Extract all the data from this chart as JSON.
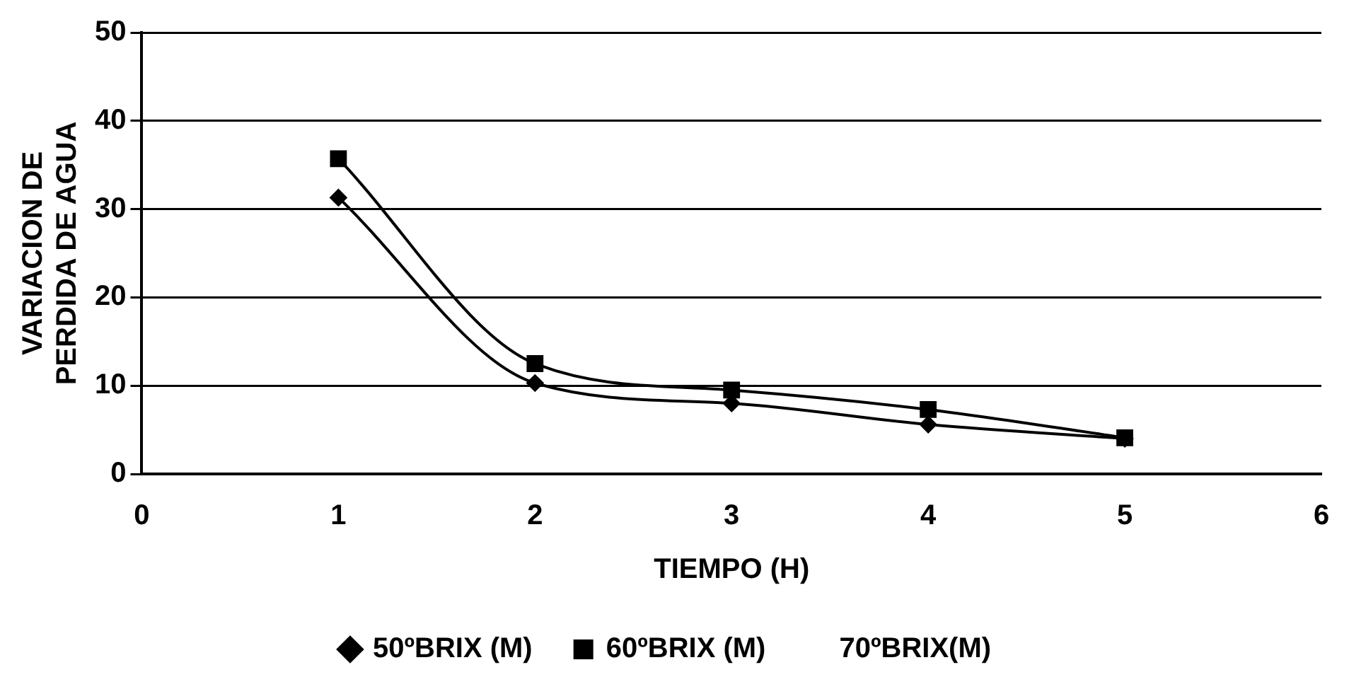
{
  "chart_data": {
    "type": "line",
    "xlabel": "TIEMPO (H)",
    "ylabel": "VARIACION DE\nPERDIDA DE AGUA",
    "x": [
      1,
      2,
      3,
      4,
      5
    ],
    "xlim": [
      0,
      6
    ],
    "xticks": [
      0,
      1,
      2,
      3,
      4,
      5,
      6
    ],
    "ylim": [
      0,
      50
    ],
    "yticks": [
      0,
      10,
      20,
      30,
      40,
      50
    ],
    "grid": "y",
    "legend": "bottom",
    "series": [
      {
        "name": "50ºBRIX (M)",
        "color": "#000000",
        "marker": "diamond",
        "values": [
          31.3,
          10.3,
          8.0,
          5.6,
          4.0
        ]
      },
      {
        "name": "60ºBRIX (M)",
        "color": "#000000",
        "marker": "square",
        "values": [
          35.7,
          12.5,
          9.5,
          7.3,
          4.1
        ]
      },
      {
        "name": "70ºBRIX(M)",
        "marker": "none",
        "values": [
          null,
          null,
          null,
          null,
          null
        ]
      }
    ]
  }
}
